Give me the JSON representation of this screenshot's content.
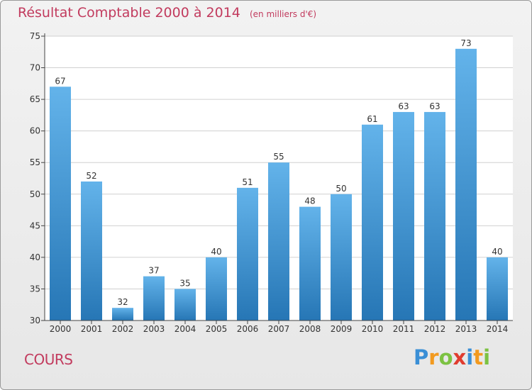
{
  "header": {
    "title": "Résultat Comptable 2000 à 2014",
    "subtitle": "(en milliers d'€)"
  },
  "footer": {
    "city": "COURS",
    "logo_letters": [
      {
        "ch": "P",
        "color": "#3a8fd6"
      },
      {
        "ch": "r",
        "color": "#f29a1f"
      },
      {
        "ch": "o",
        "color": "#7cc242"
      },
      {
        "ch": "x",
        "color": "#e03c2f"
      },
      {
        "ch": "i",
        "color": "#3a8fd6"
      },
      {
        "ch": "t",
        "color": "#f29a1f"
      },
      {
        "ch": "i",
        "color": "#7cc242"
      }
    ]
  },
  "colors": {
    "bar_top": "#63b3ea",
    "bar_bottom": "#2676b5",
    "title": "#c23b5e"
  },
  "chart_data": {
    "type": "bar",
    "title": "Résultat Comptable 2000 à 2014",
    "subtitle": "(en milliers d'€)",
    "xlabel": "",
    "ylabel": "",
    "categories": [
      "2000",
      "2001",
      "2002",
      "2003",
      "2004",
      "2005",
      "2006",
      "2007",
      "2008",
      "2009",
      "2010",
      "2011",
      "2012",
      "2013",
      "2014"
    ],
    "values": [
      67,
      52,
      32,
      37,
      35,
      40,
      51,
      55,
      48,
      50,
      61,
      63,
      63,
      73,
      40
    ],
    "ylim": [
      30,
      75
    ],
    "yticks": [
      30,
      35,
      40,
      45,
      50,
      55,
      60,
      65,
      70,
      75
    ],
    "grid": true,
    "legend": "none"
  }
}
